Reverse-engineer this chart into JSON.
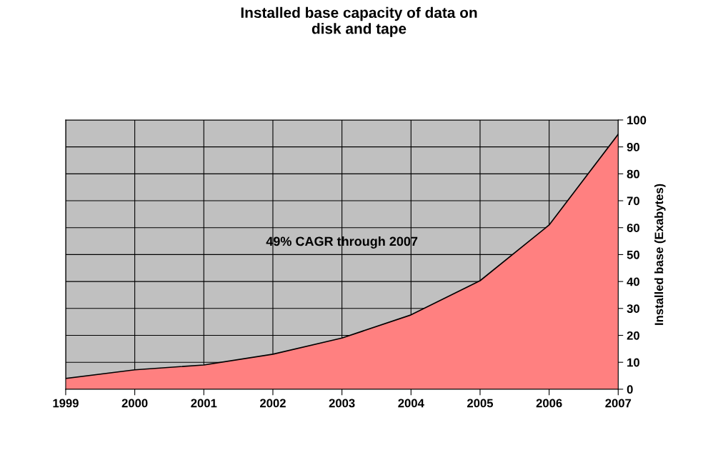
{
  "chart_data": {
    "type": "area",
    "title": "Installed base capacity of data on\ndisk and tape",
    "ylabel": "Installed base (Exabytes)",
    "x": [
      1999,
      2000,
      2001,
      2002,
      2003,
      2004,
      2005,
      2006,
      2007
    ],
    "series": [
      {
        "color": "#ff8080",
        "values": [
          4,
          7.2,
          9,
          13,
          19,
          27.6,
          40.3,
          61,
          94.7
        ]
      }
    ],
    "xlim": [
      1999,
      2007
    ],
    "xticks": [
      1999,
      2000,
      2001,
      2002,
      2003,
      2004,
      2005,
      2006,
      2007
    ],
    "ylim": [
      0,
      100
    ],
    "yticks": [
      0,
      10,
      20,
      30,
      40,
      50,
      60,
      70,
      80,
      90,
      100
    ],
    "grid": true,
    "legend": false,
    "annotations": [
      "49% CAGR through 2007"
    ]
  }
}
